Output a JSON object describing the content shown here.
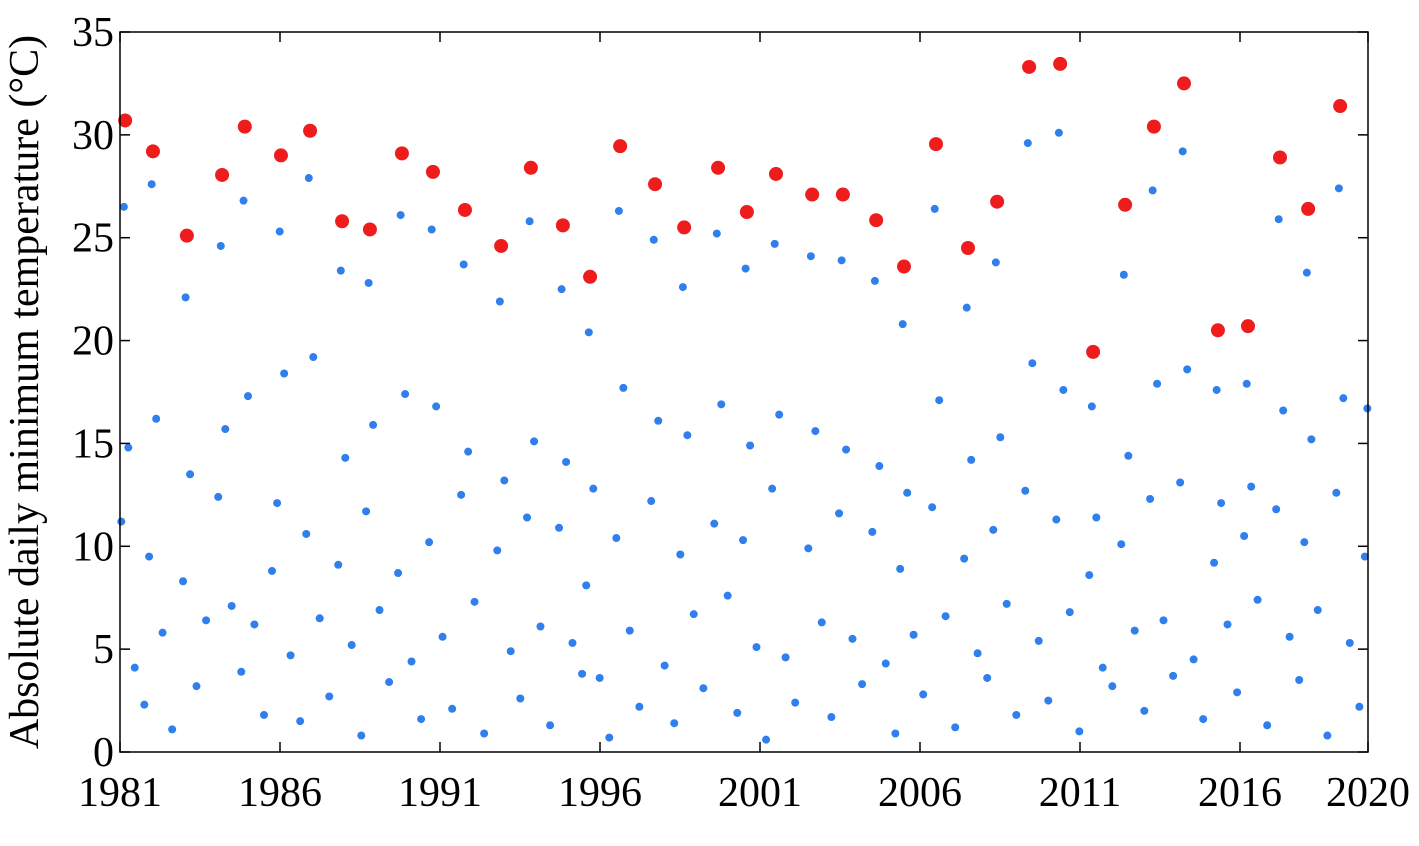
{
  "chart_data": {
    "type": "scatter",
    "y_label": "Absolute daily minimum temperature (°C)",
    "xlim": [
      1981,
      2020
    ],
    "xticks": [
      1981,
      1986,
      1991,
      1996,
      2001,
      2006,
      2011,
      2016,
      2020
    ],
    "ylim": [
      0,
      35
    ],
    "yticks": [
      0,
      5,
      10,
      15,
      20,
      25,
      30,
      35
    ],
    "series": [
      {
        "color": "#2f7fec",
        "radius": 4,
        "x": [
          1981.04,
          1981.12,
          1981.26,
          1981.46,
          1981.76,
          1981.91,
          1981.99,
          1982.13,
          1982.33,
          1982.63,
          1982.97,
          1983.05,
          1983.19,
          1983.39,
          1983.69,
          1984.07,
          1984.15,
          1984.29,
          1984.49,
          1984.79,
          1984.86,
          1985.0,
          1985.2,
          1985.5,
          1985.75,
          1985.91,
          1985.99,
          1986.13,
          1986.33,
          1986.63,
          1986.82,
          1986.9,
          1987.04,
          1987.24,
          1987.54,
          1987.82,
          1987.9,
          1988.04,
          1988.24,
          1988.54,
          1988.69,
          1988.77,
          1988.91,
          1989.11,
          1989.41,
          1989.69,
          1989.77,
          1989.91,
          1990.11,
          1990.41,
          1990.66,
          1990.74,
          1990.88,
          1991.08,
          1991.38,
          1991.66,
          1991.74,
          1991.88,
          1992.08,
          1992.38,
          1992.79,
          1992.87,
          1993.01,
          1993.21,
          1993.51,
          1993.72,
          1993.8,
          1993.94,
          1994.14,
          1994.44,
          1994.72,
          1994.8,
          1994.94,
          1995.14,
          1995.44,
          1995.57,
          1995.65,
          1995.79,
          1995.99,
          1996.29,
          1996.51,
          1996.59,
          1996.73,
          1996.93,
          1997.23,
          1997.6,
          1997.68,
          1997.82,
          1998.02,
          1998.32,
          1998.51,
          1998.59,
          1998.73,
          1998.93,
          1999.23,
          1999.57,
          1999.65,
          1999.79,
          1999.99,
          2000.29,
          2000.47,
          2000.55,
          2000.69,
          2000.89,
          2001.19,
          2001.38,
          2001.46,
          2001.6,
          2001.8,
          2002.1,
          2002.51,
          2002.59,
          2002.73,
          2002.93,
          2003.23,
          2003.47,
          2003.55,
          2003.69,
          2003.89,
          2004.19,
          2004.51,
          2004.59,
          2004.73,
          2004.93,
          2005.23,
          2005.38,
          2005.46,
          2005.6,
          2005.8,
          2006.1,
          2006.38,
          2006.46,
          2006.6,
          2006.8,
          2007.1,
          2007.38,
          2007.46,
          2007.6,
          2007.8,
          2008.1,
          2008.29,
          2008.37,
          2008.51,
          2008.71,
          2009.01,
          2009.29,
          2009.37,
          2009.51,
          2009.71,
          2010.01,
          2010.26,
          2010.34,
          2010.48,
          2010.68,
          2010.98,
          2011.29,
          2011.37,
          2011.51,
          2011.71,
          2012.01,
          2012.29,
          2012.37,
          2012.51,
          2012.71,
          2013.01,
          2013.19,
          2013.27,
          2013.41,
          2013.61,
          2013.91,
          2014.13,
          2014.21,
          2014.35,
          2014.55,
          2014.85,
          2015.19,
          2015.27,
          2015.41,
          2015.61,
          2015.91,
          2016.13,
          2016.21,
          2016.35,
          2016.55,
          2016.85,
          2017.13,
          2017.21,
          2017.35,
          2017.55,
          2017.85,
          2018.01,
          2018.09,
          2018.23,
          2018.43,
          2018.73,
          2019.01,
          2019.09,
          2019.23,
          2019.43,
          2019.73,
          2019.9,
          2019.98
        ],
        "values": [
          11.2,
          26.5,
          14.8,
          4.1,
          2.3,
          9.5,
          27.6,
          16.2,
          5.8,
          1.1,
          8.3,
          22.1,
          13.5,
          3.2,
          6.4,
          12.4,
          24.6,
          15.7,
          7.1,
          3.9,
          26.8,
          17.3,
          6.2,
          1.8,
          8.8,
          12.1,
          25.3,
          18.4,
          4.7,
          1.5,
          10.6,
          27.9,
          19.2,
          6.5,
          2.7,
          9.1,
          23.4,
          14.3,
          5.2,
          0.8,
          11.7,
          22.8,
          15.9,
          6.9,
          3.4,
          8.7,
          26.1,
          17.4,
          4.4,
          1.6,
          10.2,
          25.4,
          16.8,
          5.6,
          2.1,
          12.5,
          23.7,
          14.6,
          7.3,
          0.9,
          9.8,
          21.9,
          13.2,
          4.9,
          2.6,
          11.4,
          25.8,
          15.1,
          6.1,
          1.3,
          10.9,
          22.5,
          14.1,
          5.3,
          3.8,
          8.1,
          20.4,
          12.8,
          3.6,
          0.7,
          10.4,
          26.3,
          17.7,
          5.9,
          2.2,
          12.2,
          24.9,
          16.1,
          4.2,
          1.4,
          9.6,
          22.6,
          15.4,
          6.7,
          3.1,
          11.1,
          25.2,
          16.9,
          7.6,
          1.9,
          10.3,
          23.5,
          14.9,
          5.1,
          0.6,
          12.8,
          24.7,
          16.4,
          4.6,
          2.4,
          9.9,
          24.1,
          15.6,
          6.3,
          1.7,
          11.6,
          23.9,
          14.7,
          5.5,
          3.3,
          10.7,
          22.9,
          13.9,
          4.3,
          0.9,
          8.9,
          20.8,
          12.6,
          5.7,
          2.8,
          11.9,
          26.4,
          17.1,
          6.6,
          1.2,
          9.4,
          21.6,
          14.2,
          4.8,
          3.6,
          10.8,
          23.8,
          15.3,
          7.2,
          1.8,
          12.7,
          29.6,
          18.9,
          5.4,
          2.5,
          11.3,
          30.1,
          17.6,
          6.8,
          1.0,
          8.6,
          16.8,
          11.4,
          4.1,
          3.2,
          10.1,
          23.2,
          14.4,
          5.9,
          2.0,
          12.3,
          27.3,
          17.9,
          6.4,
          3.7,
          13.1,
          29.2,
          18.6,
          4.5,
          1.6,
          9.2,
          17.6,
          12.1,
          6.2,
          2.9,
          10.5,
          17.9,
          12.9,
          7.4,
          1.3,
          11.8,
          25.9,
          16.6,
          5.6,
          3.5,
          10.2,
          23.3,
          15.2,
          6.9,
          0.8,
          12.6,
          27.4,
          17.2,
          5.3,
          2.2,
          9.5,
          16.7
        ]
      },
      {
        "color": "#ee1c1c",
        "radius": 7,
        "x": [
          1981.16,
          1982.03,
          1983.09,
          1984.19,
          1984.9,
          1986.03,
          1986.94,
          1987.94,
          1988.81,
          1989.81,
          1990.78,
          1991.78,
          1992.91,
          1993.84,
          1994.84,
          1995.69,
          1996.63,
          1997.72,
          1998.63,
          1999.69,
          2000.59,
          2001.5,
          2002.63,
          2003.59,
          2004.63,
          2005.5,
          2006.5,
          2007.5,
          2008.41,
          2009.41,
          2010.38,
          2011.41,
          2012.41,
          2013.31,
          2014.25,
          2015.31,
          2016.25,
          2017.25,
          2018.13,
          2019.13
        ],
        "values": [
          30.7,
          29.2,
          25.1,
          28.05,
          30.4,
          29.0,
          30.2,
          25.8,
          25.4,
          29.1,
          28.2,
          26.35,
          24.6,
          28.4,
          25.6,
          23.1,
          29.45,
          27.6,
          25.5,
          28.4,
          26.25,
          28.1,
          27.1,
          27.1,
          25.85,
          23.6,
          29.55,
          24.5,
          26.75,
          33.3,
          33.45,
          19.45,
          26.6,
          30.4,
          32.5,
          20.5,
          20.7,
          28.9,
          26.4,
          31.4
        ]
      }
    ]
  }
}
